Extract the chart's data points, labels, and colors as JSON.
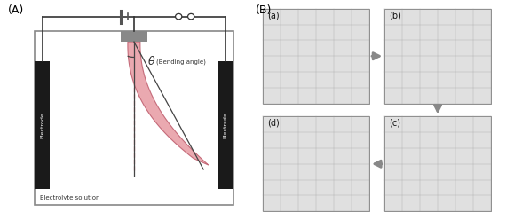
{
  "panel_A_label": "(A)",
  "panel_B_label": "(B)",
  "sub_labels": [
    "(a)",
    "(b)",
    "(c)",
    "(d)"
  ],
  "electrode_color": "#1a1a1a",
  "tank_border_color": "#888888",
  "hydrogel_color_fill": "#e8a0a8",
  "hydrogel_color_edge": "#c06070",
  "wire_color": "#333333",
  "battery_color": "#555555",
  "angle_label": "θ",
  "angle_sublabel": "(Bending angle)",
  "electrode_label": "Electrode",
  "solution_label": "Electrolyte solution",
  "dashed_color": "#e8a0a8",
  "arrow_color": "#888888",
  "grid_line_color": "#999999",
  "clamp_color": "#888888",
  "fig_bg": "#ffffff",
  "photo_bg": "#e0e0e0"
}
